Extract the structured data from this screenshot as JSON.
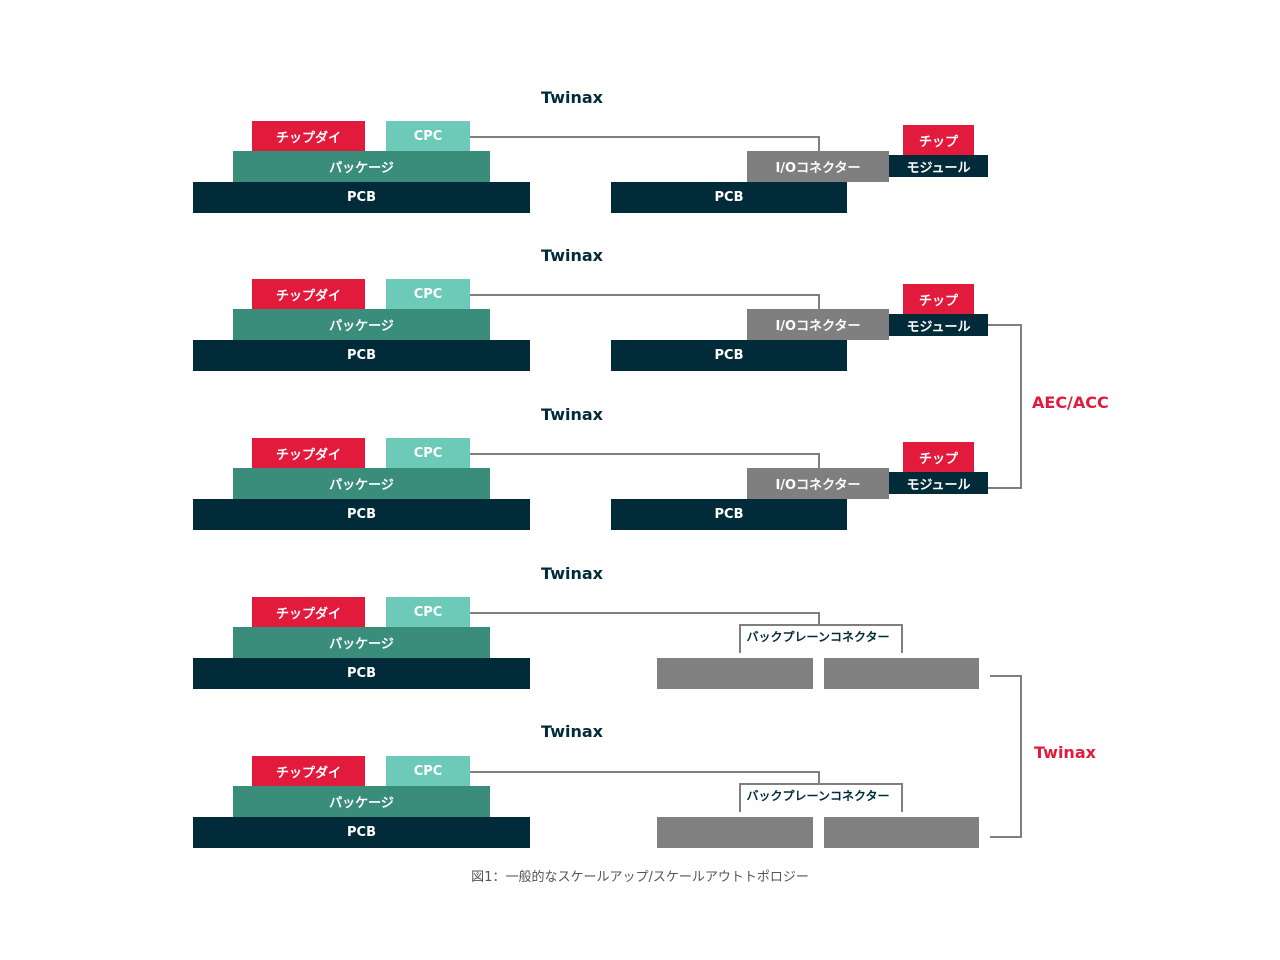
{
  "labels": {
    "twinax": "Twinax",
    "chip_die": "チップダイ",
    "cpc": "CPC",
    "package": "パッケージ",
    "pcb": "PCB",
    "io_connector": "I/Oコネクター",
    "chip": "チップ",
    "module": "モジュール",
    "backplane_connector": "バックプレーンコネクター"
  },
  "side_labels": {
    "aec_acc": "AEC/ACC",
    "twinax": "Twinax"
  },
  "caption": "図1：一般的なスケールアップ/スケールアウトトポロジー"
}
